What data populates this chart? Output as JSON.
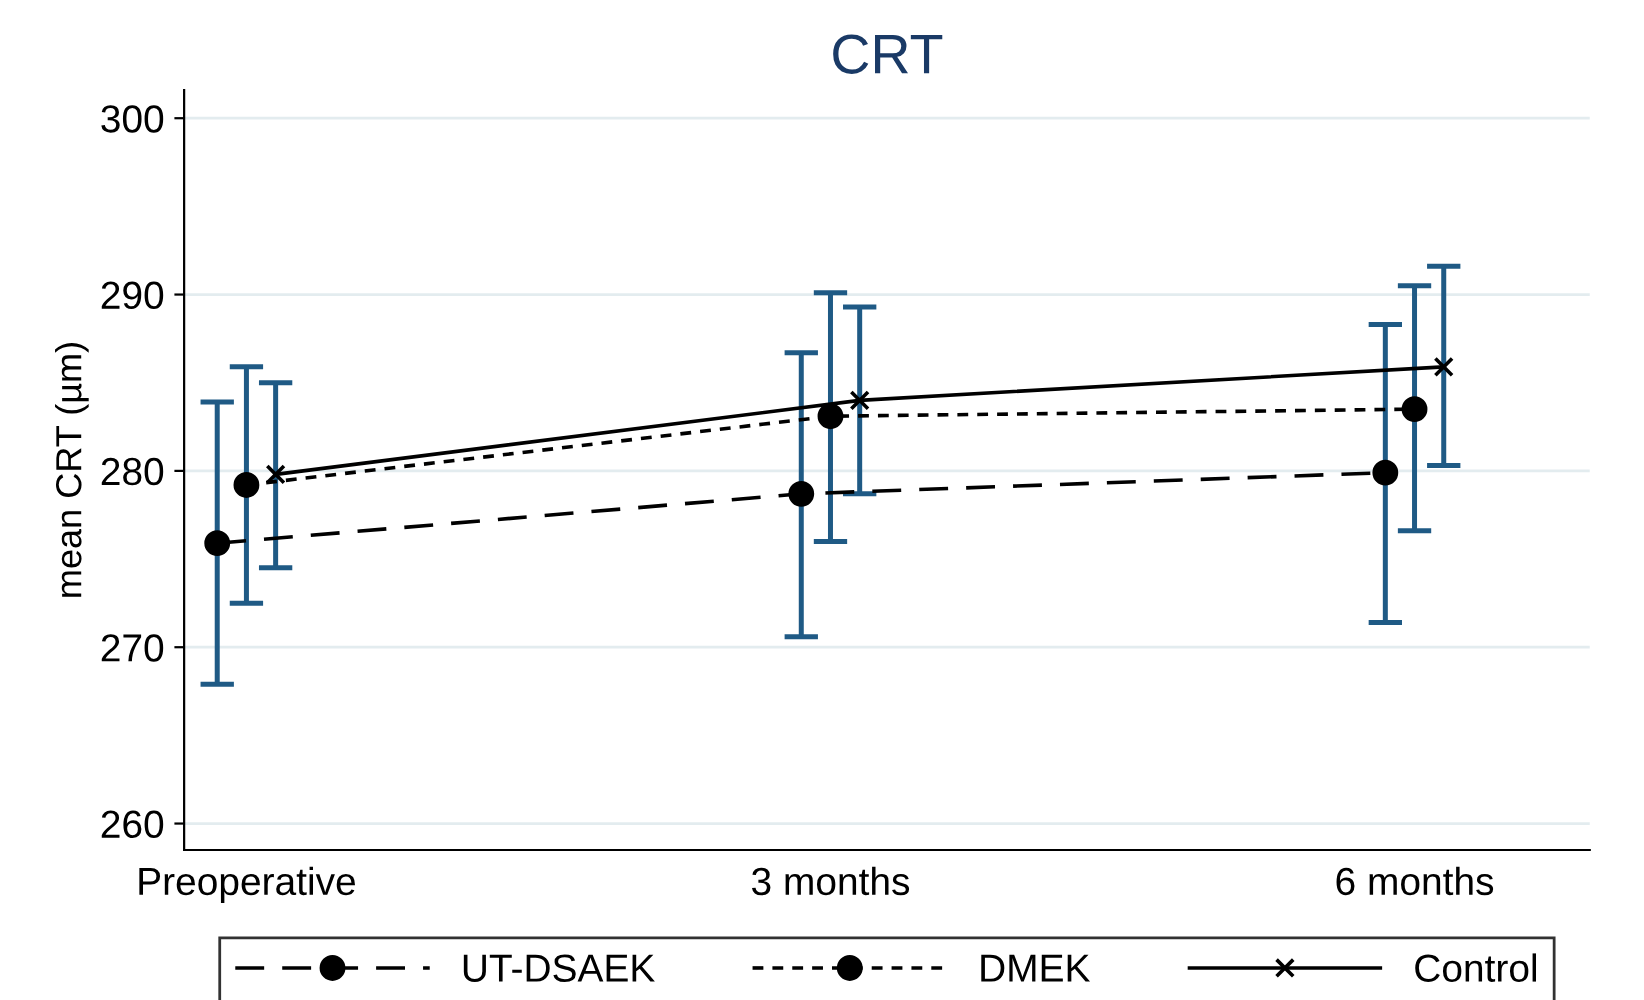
{
  "chart_data": {
    "type": "line",
    "title": "CRT",
    "ylabel": "mean CRT (µm)",
    "xlim": [
      -0.32,
      6.9
    ],
    "xticks": [
      {
        "value": 0,
        "label": "Preoperative"
      },
      {
        "value": 3,
        "label": "3 months"
      },
      {
        "value": 6,
        "label": "6 months"
      }
    ],
    "ylim": [
      258.5,
      301.6
    ],
    "yticks": [
      260,
      270,
      280,
      290,
      300
    ],
    "grid": "y",
    "legend": "bottom",
    "series": [
      {
        "name": "UT-DSAEK",
        "color": "#000000",
        "x": [
          -0.15,
          2.85,
          5.85
        ],
        "values": [
          275.9,
          278.7,
          279.9
        ],
        "errors": [
          [
            267.9,
            283.9
          ],
          [
            270.6,
            286.7
          ],
          [
            271.4,
            288.3
          ]
        ],
        "marker": "circle",
        "line_style": "dashed"
      },
      {
        "name": "DMEK",
        "color": "#000000",
        "x": [
          0,
          3,
          6
        ],
        "values": [
          279.2,
          283.1,
          283.5
        ],
        "errors": [
          [
            272.5,
            285.9
          ],
          [
            276.0,
            290.1
          ],
          [
            276.6,
            290.5
          ]
        ],
        "marker": "circle",
        "line_style": "dotted"
      },
      {
        "name": "Control",
        "color": "#000000",
        "x": [
          0.15,
          3.15,
          6.15
        ],
        "values": [
          279.8,
          284.0,
          285.9
        ],
        "errors": [
          [
            274.5,
            285.0
          ],
          [
            278.7,
            289.3
          ],
          [
            280.3,
            291.6
          ]
        ],
        "marker": "cross",
        "line_style": "solid"
      }
    ]
  }
}
